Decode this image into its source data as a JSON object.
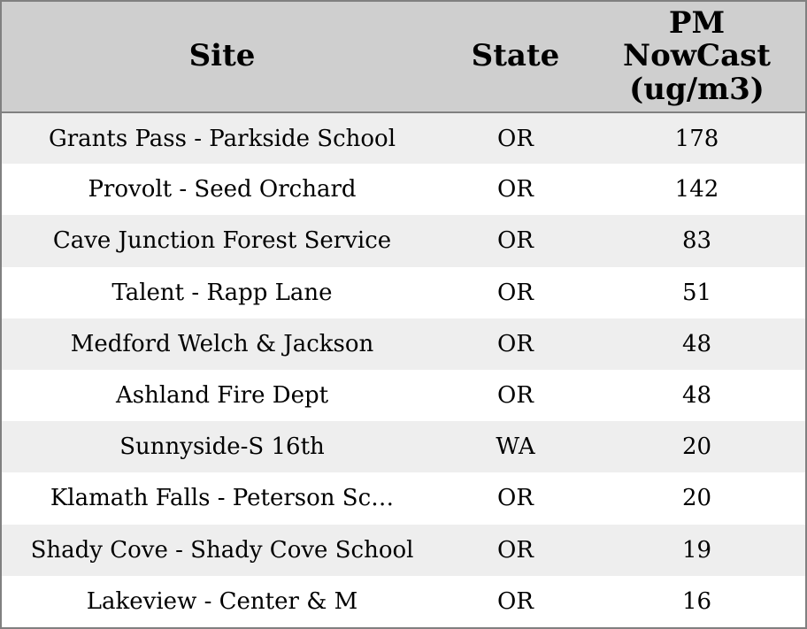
{
  "table": {
    "columns": [
      {
        "id": "site",
        "label": "Site"
      },
      {
        "id": "state",
        "label": "State"
      },
      {
        "id": "pm_nowcast",
        "label": "PM NowCast (ug/m3)"
      }
    ],
    "rows": [
      {
        "site": "Grants Pass - Parkside School",
        "state": "OR",
        "pm_nowcast": "178"
      },
      {
        "site": "Provolt - Seed Orchard",
        "state": "OR",
        "pm_nowcast": "142"
      },
      {
        "site": "Cave Junction Forest Service",
        "state": "OR",
        "pm_nowcast": "83"
      },
      {
        "site": "Talent - Rapp Lane",
        "state": "OR",
        "pm_nowcast": "51"
      },
      {
        "site": "Medford Welch & Jackson",
        "state": "OR",
        "pm_nowcast": "48"
      },
      {
        "site": "Ashland Fire Dept",
        "state": "OR",
        "pm_nowcast": "48"
      },
      {
        "site": "Sunnyside-S 16th",
        "state": "WA",
        "pm_nowcast": "20"
      },
      {
        "site": "Klamath Falls - Peterson Sc…",
        "state": "OR",
        "pm_nowcast": "20"
      },
      {
        "site": "Shady Cove - Shady Cove School",
        "state": "OR",
        "pm_nowcast": "19"
      },
      {
        "site": "Lakeview - Center & M",
        "state": "OR",
        "pm_nowcast": "16"
      }
    ]
  },
  "colors": {
    "header_bg": "#cfcfcf",
    "row_stripe_bg": "#eeeeee",
    "row_bg": "#ffffff",
    "border": "#808080",
    "text": "#000000"
  },
  "chart_data": {
    "type": "table",
    "title": "",
    "columns": [
      "Site",
      "State",
      "PM NowCast (ug/m3)"
    ],
    "categories": [
      "Grants Pass - Parkside School",
      "Provolt - Seed Orchard",
      "Cave Junction Forest Service",
      "Talent - Rapp Lane",
      "Medford Welch & Jackson",
      "Ashland Fire Dept",
      "Sunnyside-S 16th",
      "Klamath Falls - Peterson Sc…",
      "Shady Cove - Shady Cove School",
      "Lakeview - Center & M"
    ],
    "states": [
      "OR",
      "OR",
      "OR",
      "OR",
      "OR",
      "OR",
      "WA",
      "OR",
      "OR",
      "OR"
    ],
    "values": [
      178,
      142,
      83,
      51,
      48,
      48,
      20,
      20,
      19,
      16
    ]
  }
}
